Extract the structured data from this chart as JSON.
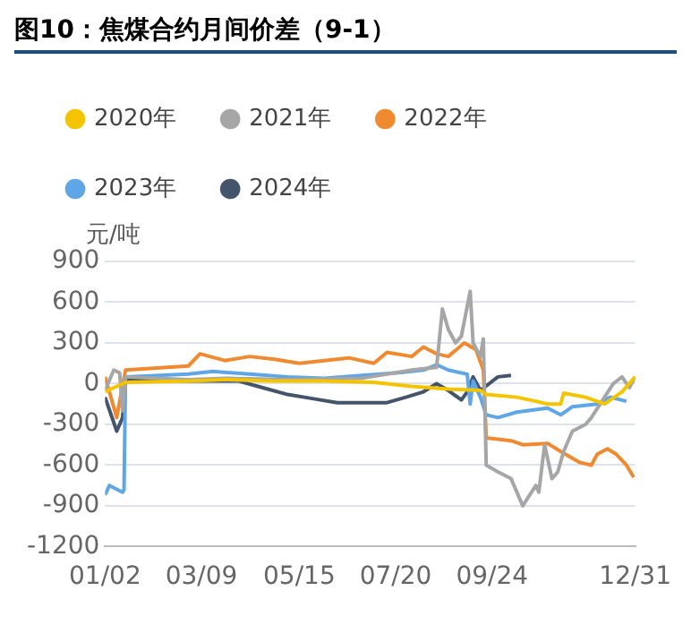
{
  "chart_data": {
    "type": "line",
    "title": "图10：焦煤合约月间价差（9-1）",
    "ylabel": "元/吨",
    "legend": "top",
    "grid": "y",
    "marker": "none",
    "line_style": "solid",
    "xlim": [
      "--01-02",
      "--12-31"
    ],
    "xticks": [
      {
        "value": "--01-02",
        "label": "01/02"
      },
      {
        "value": "--03-09",
        "label": "03/09"
      },
      {
        "value": "--05-15",
        "label": "05/15"
      },
      {
        "value": "--07-20",
        "label": "07/20"
      },
      {
        "value": "--09-24",
        "label": "09/24"
      },
      {
        "value": "--12-31",
        "label": "12/31"
      }
    ],
    "ylim": [
      -1200,
      900
    ],
    "yticks": [
      -1200,
      -900,
      -600,
      -300,
      0,
      300,
      600,
      900
    ],
    "series": [
      {
        "name": "2020年",
        "color": "#f5c400",
        "x": [
          "--01-02",
          "--01-10",
          "--01-16",
          "--02-28",
          "--03-25",
          "--04-28",
          "--06-01",
          "--07-05",
          "--07-31",
          "--08-25",
          "--09-16",
          "--09-20",
          "--10-11",
          "--10-24",
          "--11-01",
          "--11-10",
          "--11-12",
          "--11-27",
          "--12-10",
          "--12-22",
          "--12-31"
        ],
        "values": [
          -60,
          -20,
          10,
          20,
          30,
          20,
          20,
          10,
          -20,
          -40,
          -50,
          -80,
          -100,
          -130,
          -150,
          -150,
          -70,
          -100,
          -150,
          -60,
          50
        ]
      },
      {
        "name": "2021年",
        "color": "#a6a6a6",
        "x": [
          "--01-02",
          "--01-08",
          "--01-12",
          "--01-14",
          "--01-16",
          "--02-28",
          "--03-25",
          "--05-07",
          "--06-27",
          "--07-31",
          "--08-17",
          "--08-21",
          "--08-25",
          "--08-30",
          "--09-03",
          "--09-09",
          "--09-11",
          "--09-16",
          "--09-18",
          "--09-20",
          "--09-28",
          "--10-07",
          "--10-15",
          "--10-24",
          "--10-26",
          "--10-30",
          "--11-04",
          "--11-08",
          "--11-12",
          "--11-18",
          "--11-27",
          "--12-01",
          "--12-10",
          "--12-16",
          "--12-22",
          "--12-27",
          "--12-31"
        ],
        "values": [
          -50,
          100,
          80,
          -200,
          50,
          30,
          40,
          30,
          40,
          100,
          120,
          550,
          400,
          300,
          350,
          680,
          300,
          200,
          330,
          -600,
          -650,
          -700,
          -900,
          -750,
          -800,
          -450,
          -700,
          -650,
          -500,
          -350,
          -300,
          -250,
          -100,
          0,
          50,
          -30,
          50
        ]
      },
      {
        "name": "2022年",
        "color": "#f08a30",
        "x": [
          "--01-02",
          "--01-10",
          "--01-16",
          "--02-28",
          "--03-08",
          "--03-25",
          "--04-11",
          "--04-28",
          "--05-15",
          "--06-01",
          "--06-18",
          "--07-05",
          "--07-14",
          "--07-31",
          "--08-08",
          "--08-17",
          "--08-25",
          "--09-05",
          "--09-13",
          "--09-18",
          "--09-20",
          "--10-07",
          "--10-15",
          "--11-01",
          "--11-10",
          "--11-23",
          "--12-01",
          "--12-05",
          "--12-12",
          "--12-18",
          "--12-25",
          "--12-30"
        ],
        "values": [
          50,
          -250,
          100,
          130,
          220,
          170,
          200,
          180,
          150,
          170,
          190,
          150,
          230,
          200,
          270,
          220,
          200,
          300,
          250,
          100,
          -400,
          -420,
          -450,
          -440,
          -500,
          -580,
          -600,
          -520,
          -480,
          -520,
          -600,
          -690
        ]
      },
      {
        "name": "2023年",
        "color": "#5ea6e6",
        "x": [
          "--01-02",
          "--01-05",
          "--01-14",
          "--01-15",
          "--01-16",
          "--02-28",
          "--03-17",
          "--04-11",
          "--05-07",
          "--06-01",
          "--06-27",
          "--07-22",
          "--08-08",
          "--08-17",
          "--08-25",
          "--09-07",
          "--09-09",
          "--09-11",
          "--09-16",
          "--09-20",
          "--09-28",
          "--10-11",
          "--11-01",
          "--11-10",
          "--11-18",
          "--12-05",
          "--12-14",
          "--12-25"
        ],
        "values": [
          -820,
          -750,
          -800,
          -780,
          50,
          70,
          90,
          70,
          50,
          40,
          60,
          80,
          100,
          140,
          100,
          70,
          -150,
          20,
          -100,
          -230,
          -250,
          -210,
          -180,
          -230,
          -170,
          -150,
          -100,
          -130
        ]
      },
      {
        "name": "2024年",
        "color": "#44546a",
        "x": [
          "--01-02",
          "--01-10",
          "--01-14",
          "--01-16",
          "--02-28",
          "--04-03",
          "--04-20",
          "--05-07",
          "--05-24",
          "--06-10",
          "--06-27",
          "--07-14",
          "--07-27",
          "--08-08",
          "--08-17",
          "--08-25",
          "--09-03",
          "--09-07",
          "--09-11",
          "--09-16",
          "--09-22",
          "--09-28",
          "--10-07"
        ],
        "values": [
          -100,
          -350,
          -250,
          30,
          20,
          20,
          -30,
          -80,
          -110,
          -140,
          -140,
          -140,
          -100,
          -60,
          0,
          -50,
          -120,
          -60,
          50,
          -50,
          0,
          50,
          60
        ]
      }
    ]
  }
}
